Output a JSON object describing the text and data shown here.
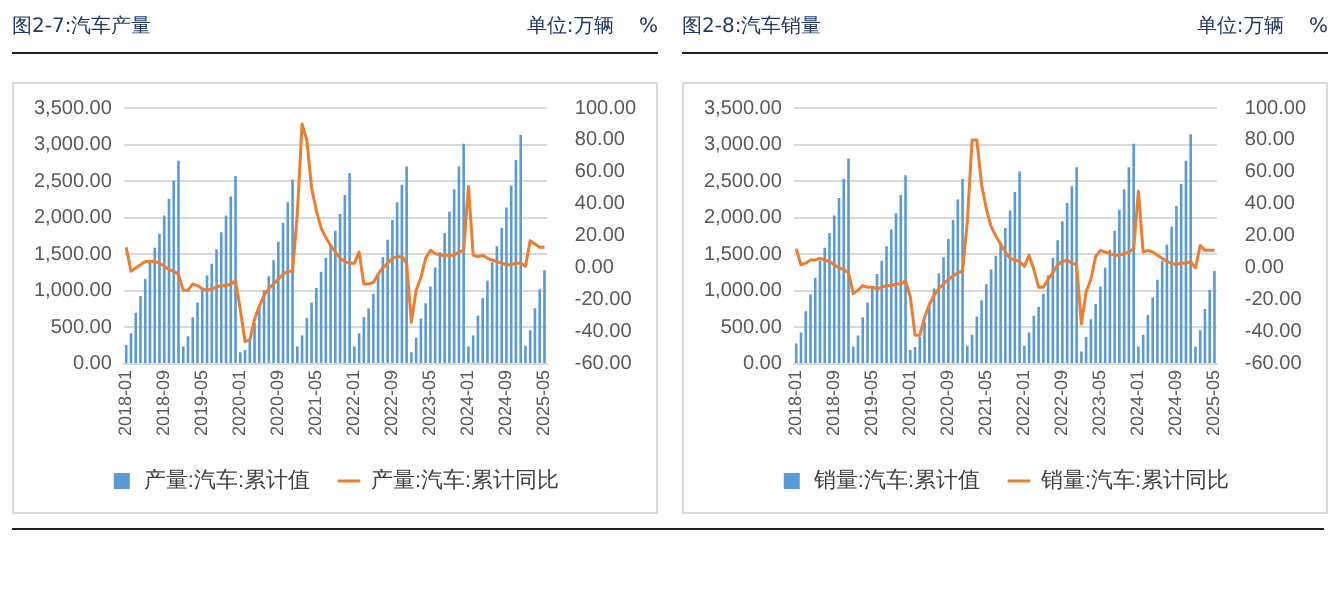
{
  "chart_data": [
    {
      "type": "bar",
      "title": "图2-7:汽车产量",
      "annotations": [
        "单位:万辆    %"
      ],
      "categories": [
        "2018-01",
        null,
        null,
        null,
        null,
        null,
        null,
        null,
        "2018-09",
        null,
        null,
        null,
        null,
        null,
        null,
        null,
        "2019-05",
        null,
        null,
        null,
        null,
        null,
        null,
        null,
        "2020-01",
        null,
        null,
        null,
        null,
        null,
        null,
        null,
        "2020-09",
        null,
        null,
        null,
        null,
        null,
        null,
        null,
        "2021-05",
        null,
        null,
        null,
        null,
        null,
        null,
        null,
        "2022-01",
        null,
        null,
        null,
        null,
        null,
        null,
        null,
        "2022-09",
        null,
        null,
        null,
        null,
        null,
        null,
        null,
        "2023-05",
        null,
        null,
        null,
        null,
        null,
        null,
        null,
        "2024-01",
        null,
        null,
        null,
        null,
        null,
        null,
        null,
        "2024-09",
        null,
        null,
        null,
        null,
        null,
        null,
        null,
        "2025-05"
      ],
      "series": [
        {
          "name": "产量:汽车:累计值",
          "color": "#5b9bd5",
          "values": [
            260,
            420,
            700,
            930,
            1160,
            1400,
            1590,
            1780,
            2030,
            2260,
            2510,
            2780,
            240,
            380,
            640,
            840,
            1030,
            1210,
            1370,
            1570,
            1800,
            2030,
            2290,
            2570,
            160,
            190,
            350,
            560,
            780,
            1010,
            1200,
            1420,
            1670,
            1930,
            2210,
            2520,
            240,
            390,
            630,
            840,
            1040,
            1260,
            1450,
            1620,
            1820,
            2050,
            2310,
            2610,
            240,
            420,
            640,
            760,
            960,
            1210,
            1460,
            1700,
            1970,
            2210,
            2450,
            2700,
            160,
            360,
            620,
            830,
            1060,
            1320,
            1530,
            1790,
            2080,
            2390,
            2700,
            3010,
            240,
            390,
            660,
            900,
            1140,
            1390,
            1610,
            1860,
            2140,
            2440,
            2790,
            3130,
            250,
            460,
            760,
            1020,
            1280
          ]
        },
        {
          "name": "产量:汽车:累计同比",
          "type": "line",
          "axis": "y2",
          "color": "#ed7d31",
          "values": [
            13,
            -2,
            0,
            2,
            4,
            4,
            4,
            3,
            1,
            -1,
            -2,
            -4,
            -14,
            -14,
            -10,
            -11,
            -13,
            -14,
            -13,
            -12,
            -11,
            -11,
            -10,
            -8,
            -26,
            -46,
            -45,
            -32,
            -24,
            -17,
            -13,
            -10,
            -7,
            -4,
            -2,
            -2,
            34,
            90,
            80,
            50,
            36,
            25,
            19,
            14,
            10,
            6,
            4,
            3,
            3,
            10,
            -10,
            -10,
            -9,
            -4,
            0,
            3,
            6,
            7,
            7,
            3,
            -34,
            -14,
            -6,
            6,
            11,
            9,
            8,
            8,
            8,
            8,
            10,
            11,
            51,
            8,
            7,
            8,
            6,
            5,
            4,
            3,
            2,
            2,
            3,
            3,
            1,
            17,
            15,
            13,
            13
          ]
        }
      ],
      "ylim": [
        0,
        3500
      ],
      "yticks": [
        {
          "value": 0,
          "label": "0.00"
        },
        {
          "value": 500,
          "label": "500.00"
        },
        {
          "value": 1000,
          "label": "1,000.00"
        },
        {
          "value": 1500,
          "label": "1,500.00"
        },
        {
          "value": 2000,
          "label": "2,000.00"
        },
        {
          "value": 2500,
          "label": "2,500.00"
        },
        {
          "value": 3000,
          "label": "3,000.00"
        },
        {
          "value": 3500,
          "label": "3,500.00"
        }
      ],
      "y2lim": [
        -60,
        100
      ],
      "y2ticks": [
        {
          "value": -60,
          "label": "-60.00"
        },
        {
          "value": -40,
          "label": "-40.00"
        },
        {
          "value": -20,
          "label": "-20.00"
        },
        {
          "value": 0,
          "label": "0.00"
        },
        {
          "value": 20,
          "label": "20.00"
        },
        {
          "value": 40,
          "label": "40.00"
        },
        {
          "value": 60,
          "label": "60.00"
        },
        {
          "value": 80,
          "label": "80.00"
        },
        {
          "value": 100,
          "label": "100.00"
        }
      ],
      "grid": "y",
      "legend": "bottom",
      "marker": "none",
      "line_style": "solid"
    },
    {
      "type": "bar",
      "title": "图2-8:汽车销量",
      "annotations": [
        "单位:万辆    %"
      ],
      "categories": [
        "2018-01",
        null,
        null,
        null,
        null,
        null,
        null,
        null,
        "2018-09",
        null,
        null,
        null,
        null,
        null,
        null,
        null,
        "2019-05",
        null,
        null,
        null,
        null,
        null,
        null,
        null,
        "2020-01",
        null,
        null,
        null,
        null,
        null,
        null,
        null,
        "2020-09",
        null,
        null,
        null,
        null,
        null,
        null,
        null,
        "2021-05",
        null,
        null,
        null,
        null,
        null,
        null,
        null,
        "2022-01",
        null,
        null,
        null,
        null,
        null,
        null,
        null,
        "2022-09",
        null,
        null,
        null,
        null,
        null,
        null,
        null,
        "2023-05",
        null,
        null,
        null,
        null,
        null,
        null,
        null,
        "2024-01",
        null,
        null,
        null,
        null,
        null,
        null,
        null,
        "2024-09",
        null,
        null,
        null,
        null,
        null,
        null,
        null,
        "2025-05"
      ],
      "series": [
        {
          "name": "销量:汽车:累计值",
          "color": "#5b9bd5",
          "values": [
            280,
            430,
            720,
            950,
            1180,
            1410,
            1590,
            1790,
            2030,
            2270,
            2530,
            2810,
            240,
            390,
            640,
            840,
            1030,
            1230,
            1410,
            1610,
            1840,
            2060,
            2310,
            2580,
            190,
            230,
            370,
            570,
            790,
            1030,
            1240,
            1460,
            1710,
            1970,
            2250,
            2530,
            250,
            400,
            650,
            870,
            1090,
            1290,
            1480,
            1650,
            1860,
            2100,
            2350,
            2630,
            250,
            430,
            660,
            780,
            960,
            1210,
            1450,
            1690,
            1950,
            2200,
            2430,
            2690,
            170,
            370,
            610,
            820,
            1060,
            1320,
            1560,
            1820,
            2110,
            2390,
            2690,
            3010,
            240,
            400,
            670,
            910,
            1150,
            1410,
            1630,
            1880,
            2160,
            2460,
            2780,
            3140,
            240,
            460,
            750,
            1010,
            1270
          ]
        },
        {
          "name": "销量:汽车:累计同比",
          "type": "line",
          "axis": "y2",
          "color": "#ed7d31",
          "values": [
            12,
            2,
            3,
            5,
            5,
            6,
            5,
            4,
            2,
            0,
            -1,
            -3,
            -16,
            -14,
            -11,
            -12,
            -12,
            -13,
            -12,
            -11,
            -11,
            -10,
            -10,
            -8,
            -18,
            -42,
            -42,
            -31,
            -23,
            -17,
            -13,
            -10,
            -7,
            -5,
            -3,
            -2,
            29,
            80,
            80,
            52,
            37,
            26,
            20,
            15,
            10,
            6,
            5,
            4,
            1,
            8,
            -1,
            -12,
            -12,
            -7,
            -3,
            2,
            4,
            5,
            3,
            2,
            -35,
            -15,
            -7,
            7,
            11,
            10,
            9,
            8,
            8,
            9,
            10,
            12,
            48,
            10,
            11,
            10,
            8,
            6,
            4,
            3,
            2,
            3,
            3,
            4,
            0,
            14,
            11,
            11,
            11
          ]
        }
      ],
      "ylim": [
        0,
        3500
      ],
      "yticks": [
        {
          "value": 0,
          "label": "0.00"
        },
        {
          "value": 500,
          "label": "500.00"
        },
        {
          "value": 1000,
          "label": "1,000.00"
        },
        {
          "value": 1500,
          "label": "1,500.00"
        },
        {
          "value": 2000,
          "label": "2,000.00"
        },
        {
          "value": 2500,
          "label": "2,500.00"
        },
        {
          "value": 3000,
          "label": "3,000.00"
        },
        {
          "value": 3500,
          "label": "3,500.00"
        }
      ],
      "y2lim": [
        -60,
        100
      ],
      "y2ticks": [
        {
          "value": -60,
          "label": "-60.00"
        },
        {
          "value": -40,
          "label": "-40.00"
        },
        {
          "value": -20,
          "label": "-20.00"
        },
        {
          "value": 0,
          "label": "0.00"
        },
        {
          "value": 20,
          "label": "20.00"
        },
        {
          "value": 40,
          "label": "40.00"
        },
        {
          "value": 60,
          "label": "60.00"
        },
        {
          "value": 80,
          "label": "80.00"
        },
        {
          "value": 100,
          "label": "100.00"
        }
      ],
      "grid": "y",
      "legend": "bottom",
      "marker": "none",
      "line_style": "solid"
    }
  ]
}
